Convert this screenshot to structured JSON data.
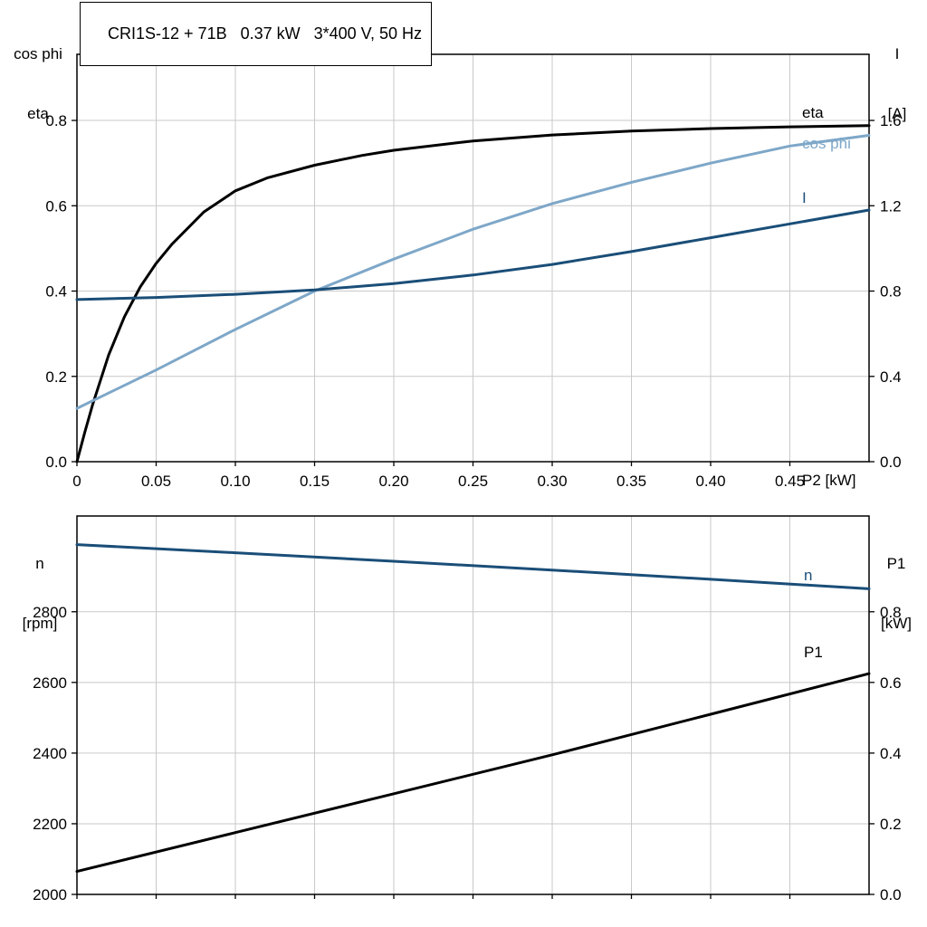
{
  "title": "CRI1S-12 + 71B   0.37 kW   3*400 V, 50 Hz",
  "colors": {
    "black": "#000000",
    "dark_blue": "#1a4e78",
    "light_blue": "#7ea7c8",
    "grid": "#c9c9c9"
  },
  "chart_data": [
    {
      "type": "line",
      "name": "efficiency-current-chart",
      "x_axis": {
        "label": "P2 [kW]",
        "range": [
          0,
          0.5
        ],
        "ticks": [
          0,
          0.05,
          0.1,
          0.15,
          0.2,
          0.25,
          0.3,
          0.35,
          0.4,
          0.45
        ],
        "tick_labels": [
          "0",
          "0.05",
          "0.10",
          "0.15",
          "0.20",
          "0.25",
          "0.30",
          "0.35",
          "0.40",
          "0.45"
        ]
      },
      "left_axis": {
        "title_lines": [
          "cos phi",
          "eta"
        ],
        "range": [
          0,
          0.955
        ],
        "ticks": [
          0,
          0.2,
          0.4,
          0.6,
          0.8
        ],
        "tick_labels": [
          "0.0",
          "0.2",
          "0.4",
          "0.6",
          "0.8"
        ]
      },
      "right_axis": {
        "title_lines": [
          "I",
          "[A]"
        ],
        "range": [
          0,
          1.91
        ],
        "ticks": [
          0,
          0.4,
          0.8,
          1.2,
          1.6
        ],
        "tick_labels": [
          "0.0",
          "0.4",
          "0.8",
          "1.2",
          "1.6"
        ]
      },
      "series": [
        {
          "name": "eta",
          "label": "eta",
          "axis": "left",
          "color": "black",
          "label_pos": [
            886,
            130
          ],
          "x": [
            0,
            0.005,
            0.01,
            0.02,
            0.03,
            0.04,
            0.05,
            0.06,
            0.08,
            0.1,
            0.12,
            0.15,
            0.18,
            0.2,
            0.25,
            0.3,
            0.35,
            0.4,
            0.45,
            0.5
          ],
          "y": [
            0,
            0.07,
            0.135,
            0.25,
            0.34,
            0.41,
            0.465,
            0.51,
            0.585,
            0.635,
            0.665,
            0.695,
            0.718,
            0.73,
            0.752,
            0.766,
            0.775,
            0.781,
            0.785,
            0.788
          ]
        },
        {
          "name": "cos_phi",
          "label": "cos phi",
          "axis": "left",
          "color": "light_blue",
          "label_pos": [
            886,
            164
          ],
          "x": [
            0,
            0.05,
            0.1,
            0.15,
            0.2,
            0.25,
            0.3,
            0.35,
            0.4,
            0.45,
            0.5
          ],
          "y": [
            0.125,
            0.215,
            0.31,
            0.4,
            0.475,
            0.545,
            0.605,
            0.655,
            0.7,
            0.74,
            0.765
          ]
        },
        {
          "name": "I",
          "label": "I",
          "axis": "right",
          "color": "dark_blue",
          "label_pos": [
            886,
            224
          ],
          "x": [
            0,
            0.05,
            0.1,
            0.15,
            0.2,
            0.25,
            0.3,
            0.35,
            0.4,
            0.45,
            0.5
          ],
          "y": [
            0.76,
            0.77,
            0.785,
            0.805,
            0.835,
            0.875,
            0.925,
            0.985,
            1.05,
            1.115,
            1.18
          ]
        }
      ]
    },
    {
      "type": "line",
      "name": "speed-power-chart",
      "x_axis": {
        "label": "",
        "range": [
          0,
          0.5
        ],
        "ticks": [
          0,
          0.05,
          0.1,
          0.15,
          0.2,
          0.25,
          0.3,
          0.35,
          0.4,
          0.45
        ],
        "tick_labels": []
      },
      "left_axis": {
        "title_lines": [
          "n",
          "[rpm]"
        ],
        "range": [
          2000,
          3071
        ],
        "ticks": [
          2000,
          2200,
          2400,
          2600,
          2800
        ],
        "tick_labels": [
          "2000",
          "2200",
          "2400",
          "2600",
          "2800"
        ]
      },
      "right_axis": {
        "title_lines": [
          "P1",
          "[kW]"
        ],
        "range": [
          0,
          1.071
        ],
        "ticks": [
          0,
          0.2,
          0.4,
          0.6,
          0.8
        ],
        "tick_labels": [
          "0.0",
          "0.2",
          "0.4",
          "0.6",
          "0.8"
        ]
      },
      "series": [
        {
          "name": "n",
          "label": "n",
          "axis": "left",
          "color": "dark_blue",
          "label_pos": [
            888,
            641
          ],
          "x": [
            0,
            0.1,
            0.2,
            0.3,
            0.4,
            0.5
          ],
          "y": [
            2990,
            2967,
            2943,
            2918,
            2892,
            2865
          ]
        },
        {
          "name": "P1",
          "label": "P1",
          "axis": "right",
          "color": "black",
          "label_pos": [
            888,
            726
          ],
          "x": [
            0,
            0.1,
            0.2,
            0.3,
            0.4,
            0.5
          ],
          "y": [
            0.065,
            0.175,
            0.285,
            0.395,
            0.51,
            0.625
          ]
        }
      ]
    }
  ]
}
